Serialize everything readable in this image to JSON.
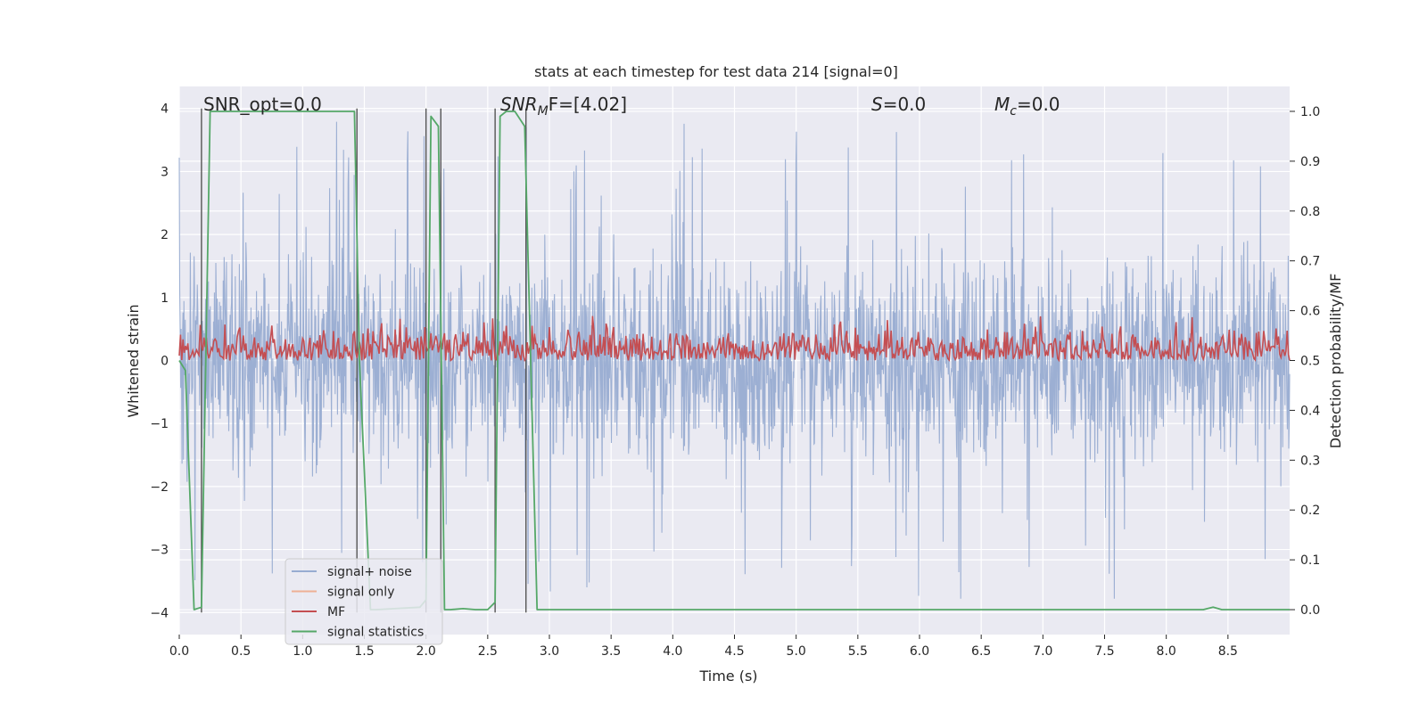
{
  "chart_data": {
    "type": "line",
    "title": "stats at each timestep for test data 214 [signal=0]",
    "xlabel": "Time (s)",
    "ylabel": "Whitened strain",
    "ylabel_right": "Detection probability/MF",
    "xlim": [
      0.0,
      9.0
    ],
    "ylim": [
      -4.35,
      4.35
    ],
    "ylim_right": [
      -0.05,
      1.05
    ],
    "xticks": [
      "0.0",
      "0.5",
      "1.0",
      "1.5",
      "2.0",
      "2.5",
      "3.0",
      "3.5",
      "4.0",
      "4.5",
      "5.0",
      "5.5",
      "6.0",
      "6.5",
      "7.0",
      "7.5",
      "8.0",
      "8.5"
    ],
    "yticks": [
      "4",
      "3",
      "2",
      "1",
      "0",
      "−1",
      "−2",
      "−3",
      "−4"
    ],
    "yticks_right": [
      "1.0",
      "0.9",
      "0.8",
      "0.7",
      "0.6",
      "0.5",
      "0.4",
      "0.3",
      "0.2",
      "0.1",
      "0.0"
    ],
    "grid": true,
    "legend_position": "lower-left",
    "annotations": [
      {
        "text": "SNR_opt=0.0"
      },
      {
        "text": "SNR",
        "sub": "M",
        "suffix": "F=[4.02]",
        "italic": true
      },
      {
        "text": "S",
        "suffix": "=0.0",
        "italic": true
      },
      {
        "text": "M",
        "sub": "c",
        "suffix": "=0.0",
        "italic": true
      }
    ],
    "vlines": [
      0.18,
      1.44,
      2.0,
      2.12,
      2.56,
      2.81
    ],
    "series": [
      {
        "name": "signal+ noise",
        "color": "#98acd1",
        "axis": "left",
        "description": "whitened noise, random amplitude approx ±2.3 with spikes to ±4"
      },
      {
        "name": "signal only",
        "color": "#eeb094",
        "axis": "left",
        "values_note": "zero signal"
      },
      {
        "name": "MF",
        "color": "#c44e52",
        "axis": "right",
        "description": "matched-filter output fluctuating between 0.50 and 0.63"
      },
      {
        "name": "signal statistics",
        "color": "#55a868",
        "axis": "right",
        "x": [
          0.0,
          0.05,
          0.12,
          0.18,
          0.25,
          0.3,
          0.5,
          1.0,
          1.42,
          1.46,
          1.55,
          1.6,
          1.95,
          2.0,
          2.04,
          2.1,
          2.15,
          2.2,
          2.3,
          2.4,
          2.5,
          2.56,
          2.6,
          2.65,
          2.72,
          2.8,
          2.9,
          3.0,
          4.0,
          5.0,
          6.0,
          7.0,
          8.0,
          8.3,
          8.38,
          8.45,
          9.0
        ],
        "y": [
          0.5,
          0.48,
          0.0,
          0.005,
          1.0,
          1.0,
          1.0,
          1.0,
          1.0,
          0.5,
          0.0,
          0.0,
          0.005,
          0.02,
          0.99,
          0.97,
          0.0,
          0.0,
          0.002,
          0.0,
          0.0,
          0.015,
          0.99,
          1.0,
          1.0,
          0.97,
          0.0,
          0.0,
          0.0,
          0.0,
          0.0,
          0.0,
          0.0,
          0.0,
          0.005,
          0.0,
          0.0
        ]
      }
    ]
  }
}
